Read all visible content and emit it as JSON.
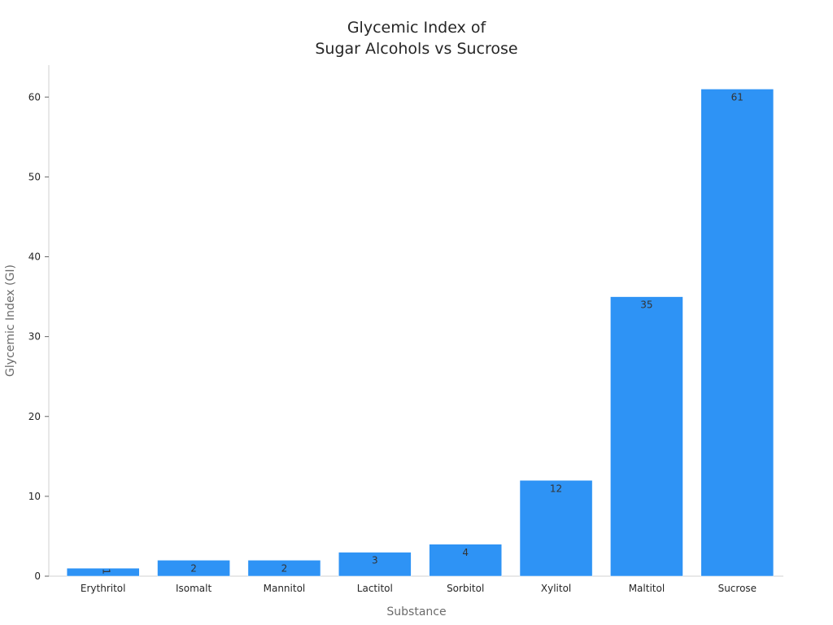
{
  "chart_data": {
    "type": "bar",
    "title_lines": [
      "Glycemic Index of",
      "Sugar Alcohols vs Sucrose"
    ],
    "xlabel": "Substance",
    "ylabel": "Glycemic Index (GI)",
    "categories": [
      "Erythritol",
      "Isomalt",
      "Mannitol",
      "Lactitol",
      "Sorbitol",
      "Xylitol",
      "Maltitol",
      "Sucrose"
    ],
    "values": [
      1,
      2,
      2,
      3,
      4,
      12,
      35,
      61
    ],
    "data_labels": [
      "1",
      "2",
      "2",
      "3",
      "4",
      "12",
      "35",
      "61"
    ],
    "ylim": [
      0,
      64
    ],
    "yticks": [
      0,
      10,
      20,
      30,
      40,
      50,
      60
    ],
    "grid": false,
    "bar_color": "#2e93f5"
  }
}
